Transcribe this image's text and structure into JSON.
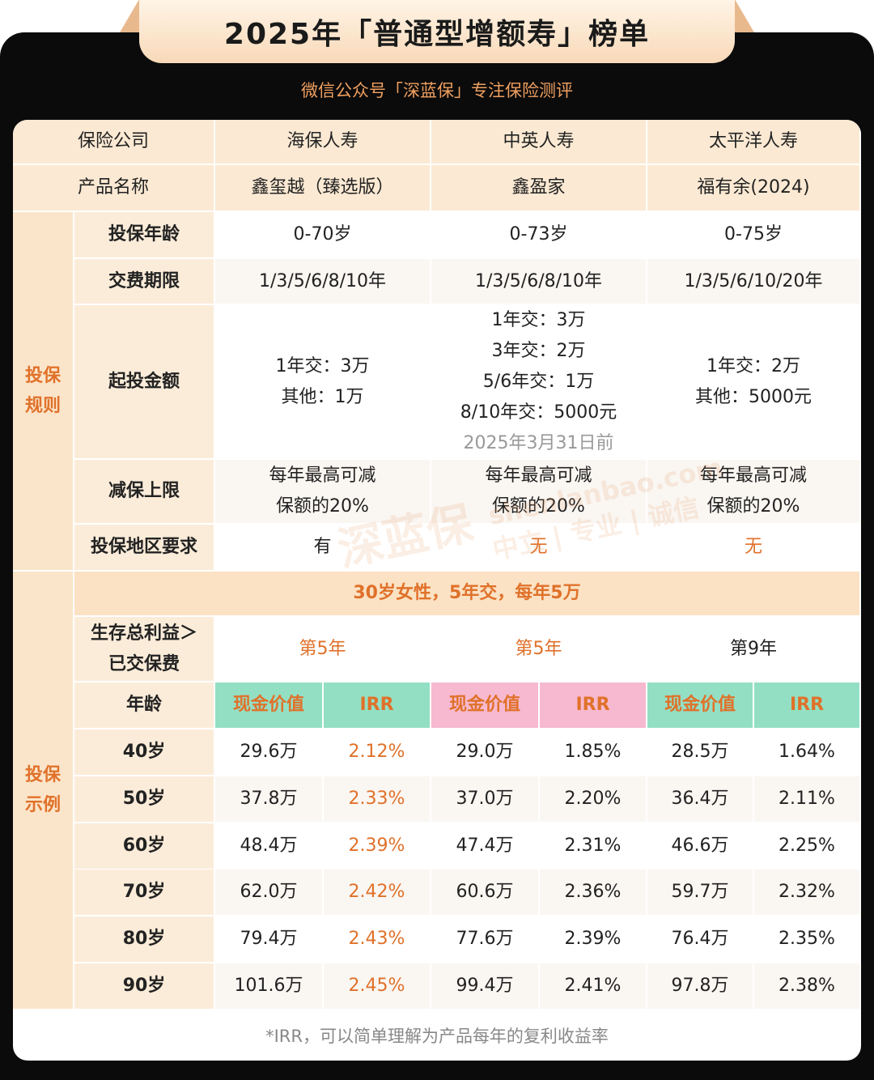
{
  "header": {
    "title": "2025年「普通型增额寿」榜单",
    "subtitle": "微信公众号「深蓝保」专注保险测评"
  },
  "table": {
    "company_label": "保险公司",
    "companies": [
      "海保人寿",
      "中英人寿",
      "太平洋人寿"
    ],
    "product_label": "产品名称",
    "products": [
      "鑫玺越（臻选版）",
      "鑫盈家",
      "福有余(2024)"
    ],
    "rules": {
      "group": "投保规则",
      "rows": [
        {
          "label": "投保年龄",
          "cells": [
            {
              "lines": [
                "0-70岁"
              ]
            },
            {
              "lines": [
                "0-73岁"
              ]
            },
            {
              "lines": [
                "0-75岁"
              ]
            }
          ]
        },
        {
          "label": "交费期限",
          "cells": [
            {
              "lines": [
                "1/3/5/6/8/10年"
              ]
            },
            {
              "lines": [
                "1/3/5/6/8/10年"
              ]
            },
            {
              "lines": [
                "1/3/5/6/10/20年"
              ]
            }
          ]
        },
        {
          "label": "起投金额",
          "cells": [
            {
              "lines": [
                "1年交：3万",
                "其他：1万"
              ]
            },
            {
              "lines": [
                "1年交：3万",
                "3年交：2万",
                "5/6年交：1万",
                "8/10年交：5000元"
              ],
              "note": "2025年3月31日前"
            },
            {
              "lines": [
                "1年交：2万",
                "其他：5000元"
              ]
            }
          ]
        },
        {
          "label": "减保上限",
          "cells": [
            {
              "lines": [
                "每年最高可减",
                "保额的20%"
              ]
            },
            {
              "lines": [
                "每年最高可减",
                "保额的20%"
              ]
            },
            {
              "lines": [
                "每年最高可减",
                "保额的20%"
              ]
            }
          ]
        },
        {
          "label": "投保地区要求",
          "cells": [
            {
              "lines": [
                "有"
              ]
            },
            {
              "lines": [
                "无"
              ],
              "accent": true
            },
            {
              "lines": [
                "无"
              ],
              "accent": true
            }
          ]
        }
      ]
    },
    "example": {
      "group": "投保示例",
      "scenario": "30岁女性，5年交，每年5万",
      "breakeven_label": [
        "生存总利益＞",
        "已交保费"
      ],
      "breakeven": [
        {
          "text": "第5年",
          "accent": true
        },
        {
          "text": "第5年",
          "accent": true
        },
        {
          "text": "第9年"
        }
      ],
      "age_label": "年龄",
      "columns": [
        {
          "cash": "现金价值",
          "irr": "IRR",
          "color": "#93dfc4",
          "accent": true
        },
        {
          "cash": "现金价值",
          "irr": "IRR",
          "color": "#f6b9cf"
        },
        {
          "cash": "现金价值",
          "irr": "IRR",
          "color": "#93dfc4"
        }
      ],
      "rows": [
        {
          "age": "40岁",
          "values": [
            "29.6万",
            "2.12%",
            "29.0万",
            "1.85%",
            "28.5万",
            "1.64%"
          ]
        },
        {
          "age": "50岁",
          "values": [
            "37.8万",
            "2.33%",
            "37.0万",
            "2.20%",
            "36.4万",
            "2.11%"
          ]
        },
        {
          "age": "60岁",
          "values": [
            "48.4万",
            "2.39%",
            "47.4万",
            "2.31%",
            "46.6万",
            "2.25%"
          ]
        },
        {
          "age": "70岁",
          "values": [
            "62.0万",
            "2.42%",
            "60.6万",
            "2.36%",
            "59.7万",
            "2.32%"
          ]
        },
        {
          "age": "80岁",
          "values": [
            "79.4万",
            "2.43%",
            "77.6万",
            "2.39%",
            "76.4万",
            "2.35%"
          ]
        },
        {
          "age": "90岁",
          "values": [
            "101.6万",
            "2.45%",
            "99.4万",
            "2.41%",
            "97.8万",
            "2.38%"
          ]
        }
      ]
    },
    "footnote": "*IRR，可以简单理解为产品每年的复利收益率"
  },
  "watermark": {
    "brand": "深蓝保",
    "site": "shenlanbao.com",
    "motto": "中立 | 专业 | 诚信"
  }
}
